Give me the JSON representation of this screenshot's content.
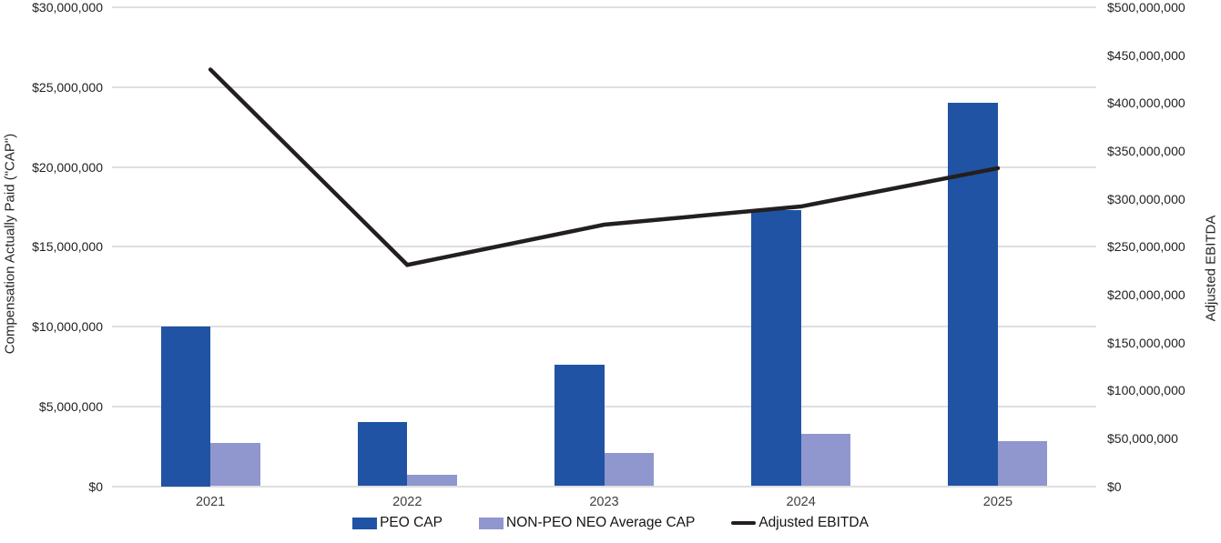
{
  "chart_data": {
    "type": "combo-bar-line",
    "categories": [
      "2021",
      "2022",
      "2023",
      "2024",
      "2025"
    ],
    "bar_series": [
      {
        "name": "PEO CAP",
        "color": "#2053a4",
        "axis": "left",
        "values": [
          10000000,
          4000000,
          7600000,
          17300000,
          24000000
        ]
      },
      {
        "name": "NON-PEO NEO Average CAP",
        "color": "#8f97ce",
        "axis": "left",
        "values": [
          2700000,
          700000,
          2100000,
          3300000,
          2800000
        ]
      }
    ],
    "line_series": [
      {
        "name": "Adjusted EBITDA",
        "color": "#231f20",
        "axis": "right",
        "values": [
          435000000,
          231000000,
          273000000,
          292000000,
          332000000
        ]
      }
    ],
    "left_axis": {
      "label": "Compensation Actually Paid (\"CAP\")",
      "min": 0,
      "max": 30000000,
      "step": 5000000,
      "tick_labels": [
        "$0",
        "$5,000,000",
        "$10,000,000",
        "$15,000,000",
        "$20,000,000",
        "$25,000,000",
        "$30,000,000"
      ]
    },
    "right_axis": {
      "label": "Adjusted EBITDA",
      "min": 0,
      "max": 500000000,
      "step": 50000000,
      "tick_labels": [
        "$0",
        "$50,000,000",
        "$100,000,000",
        "$150,000,000",
        "$200,000,000",
        "$250,000,000",
        "$300,000,000",
        "$350,000,000",
        "$400,000,000",
        "$450,000,000",
        "$500,000,000"
      ]
    },
    "grid": "horizontal",
    "legend_position": "bottom",
    "background_color": "#ffffff",
    "gridline_color": "#dfdfdf"
  }
}
